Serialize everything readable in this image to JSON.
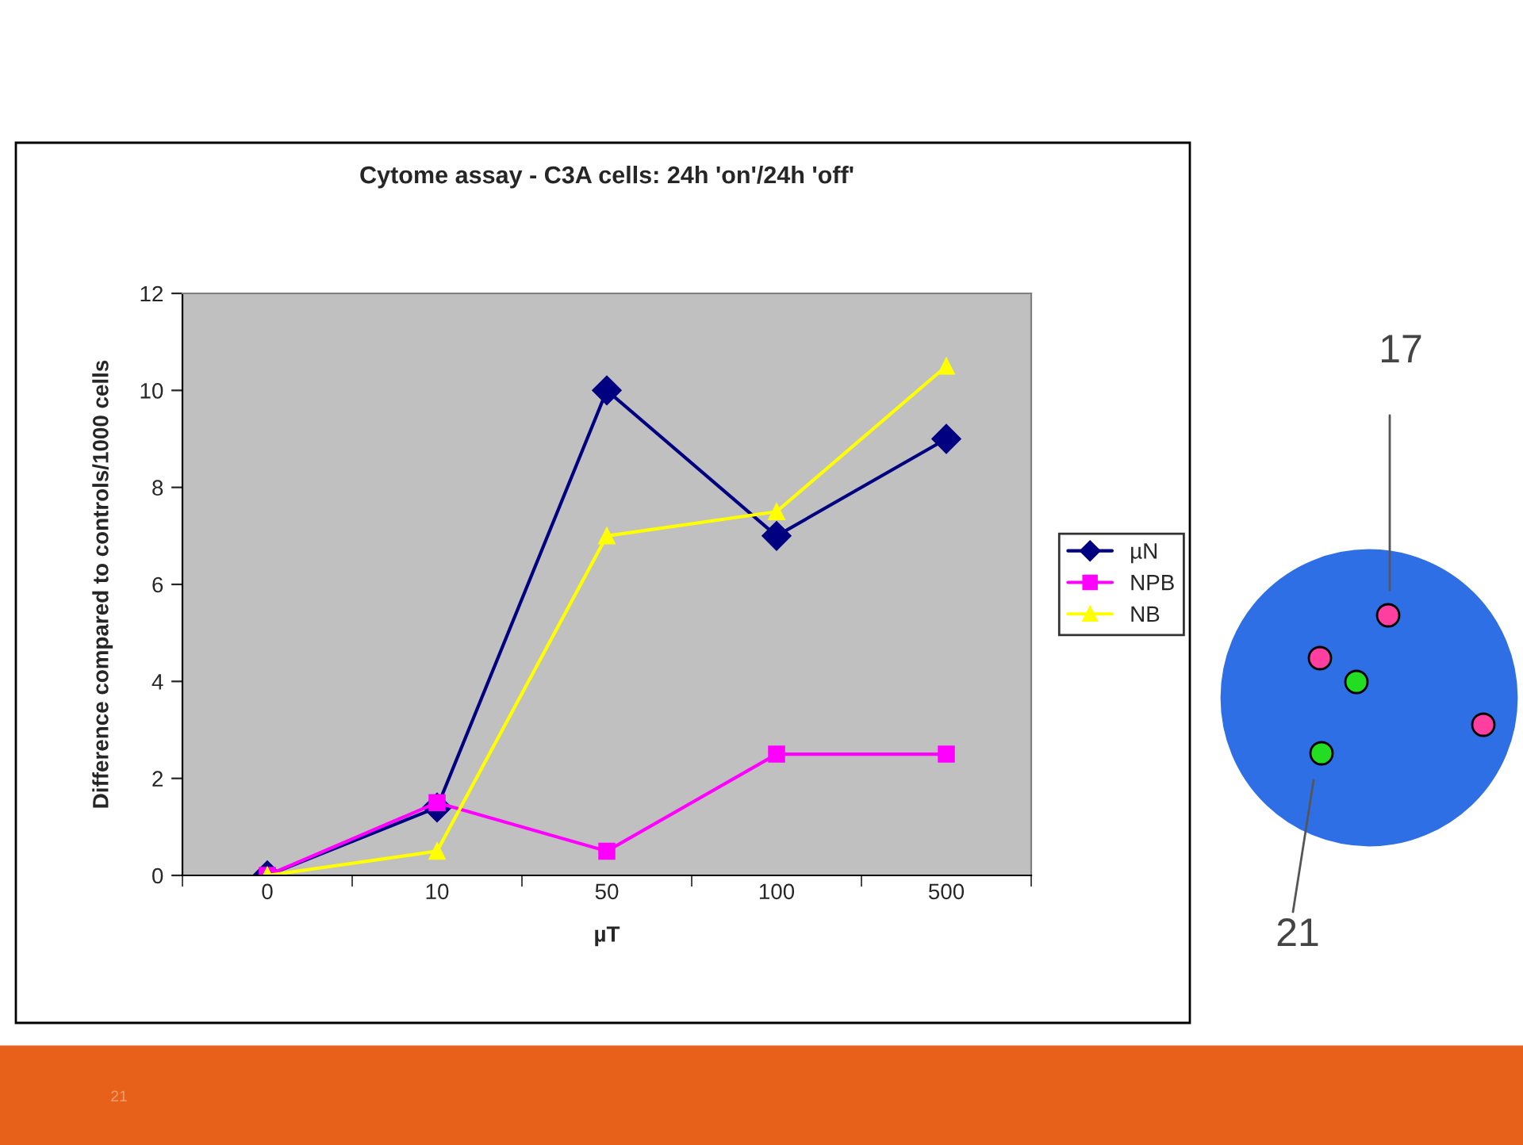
{
  "chart_data": {
    "type": "line",
    "title": "Cytome assay - C3A cells: 24h 'on'/24h 'off'",
    "xlabel": "µT",
    "ylabel": "Difference compared to controls/1000 cells",
    "categories": [
      "0",
      "10",
      "50",
      "100",
      "500"
    ],
    "series": [
      {
        "name": "µN",
        "color": "#000080",
        "marker": "diamond",
        "values": [
          0,
          1.4,
          10,
          7,
          9
        ]
      },
      {
        "name": "NPB",
        "color": "#ff00ff",
        "marker": "square",
        "values": [
          0,
          1.5,
          0.5,
          2.5,
          2.5
        ]
      },
      {
        "name": "NB",
        "color": "#ffff00",
        "marker": "triangle",
        "values": [
          0,
          0.5,
          7,
          7.5,
          10.5
        ]
      }
    ],
    "ylim": [
      0,
      12
    ],
    "yticks": [
      0,
      2,
      4,
      6,
      8,
      10,
      12
    ],
    "legend": "right",
    "grid": false,
    "annotations": [
      "17",
      "21",
      "21"
    ]
  }
}
